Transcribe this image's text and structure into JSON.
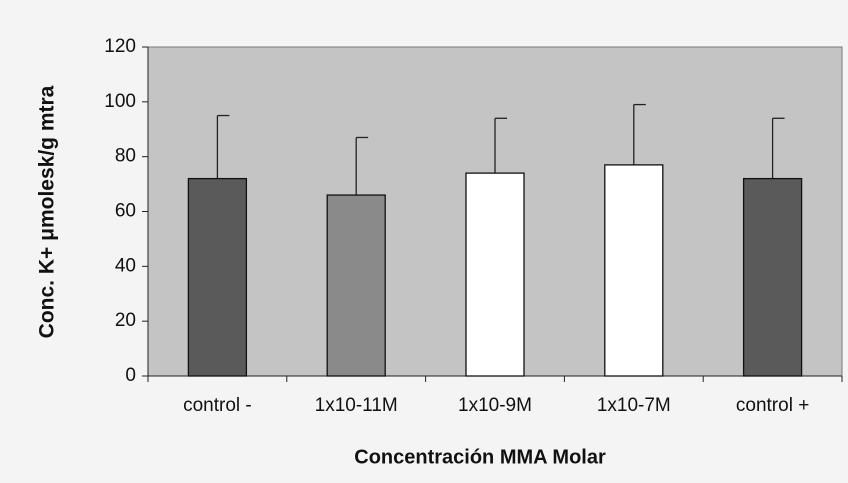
{
  "chart_data": {
    "type": "bar",
    "x_label": "Concentración MMA  Molar",
    "y_label": "Conc. K+ μmolesk/g mtra",
    "categories": [
      "control -",
      "1x10-11M",
      "1x10-9M",
      "1x10-7M",
      "control +"
    ],
    "values": [
      72,
      66,
      74,
      77,
      72
    ],
    "errors": [
      23,
      21,
      20,
      22,
      22
    ],
    "colors": [
      "#5a5a5a",
      "#8a8a8a",
      "#ffffff",
      "#ffffff",
      "#5a5a5a"
    ],
    "ylim": [
      0,
      120
    ],
    "yticks": [
      0,
      20,
      40,
      60,
      80,
      100,
      120
    ],
    "grid": false
  }
}
